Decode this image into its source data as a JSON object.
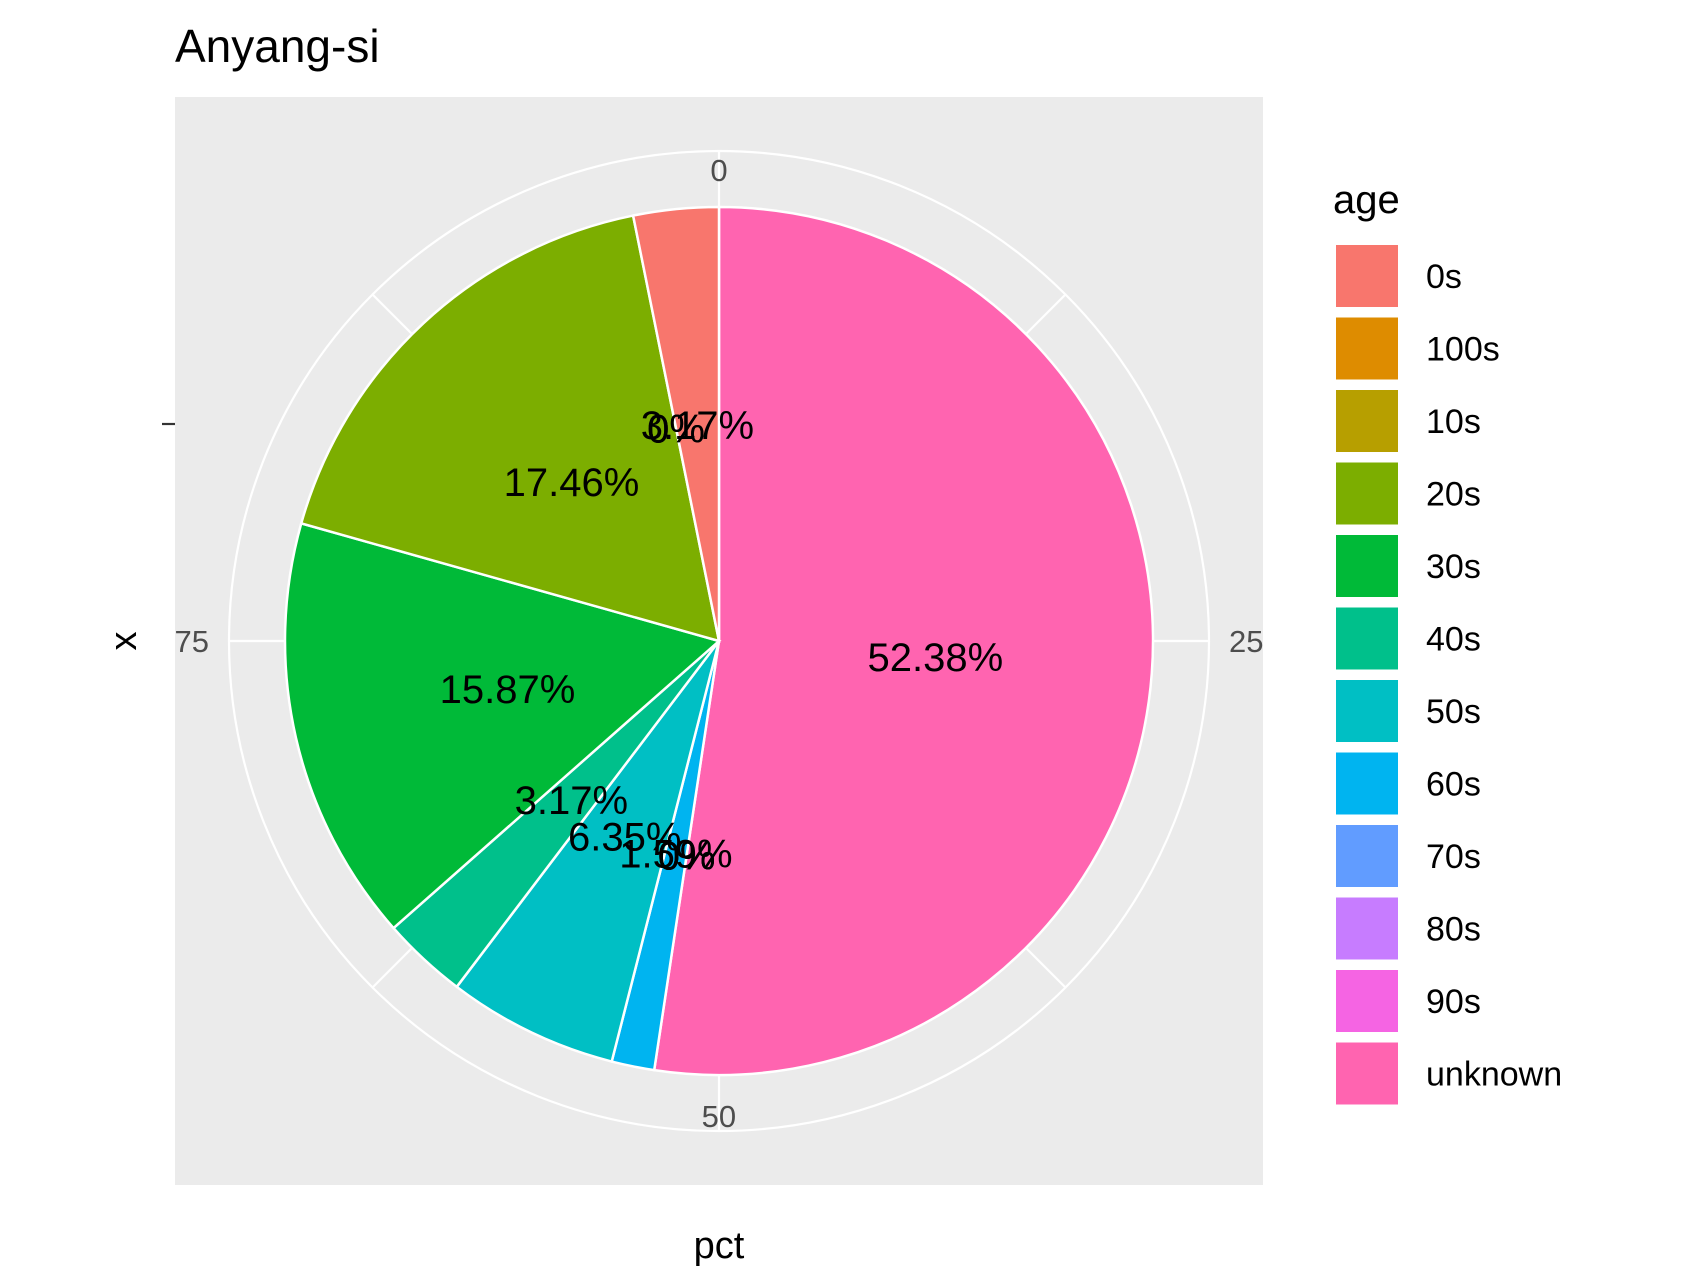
{
  "chart_data": {
    "type": "pie",
    "title": "Anyang-si",
    "xlabel": "pct",
    "ylabel": "x",
    "theta_ticks": [
      "0",
      "25",
      "50",
      "75"
    ],
    "legend": {
      "title": "age",
      "placement": "right",
      "entries": [
        {
          "label": "0s",
          "color": "#F8766D"
        },
        {
          "label": "100s",
          "color": "#DE8C00"
        },
        {
          "label": "10s",
          "color": "#B79F00"
        },
        {
          "label": "20s",
          "color": "#7CAE00"
        },
        {
          "label": "30s",
          "color": "#00BA38"
        },
        {
          "label": "40s",
          "color": "#00C08B"
        },
        {
          "label": "50s",
          "color": "#00BFC4"
        },
        {
          "label": "60s",
          "color": "#00B4F0"
        },
        {
          "label": "70s",
          "color": "#619CFF"
        },
        {
          "label": "80s",
          "color": "#C77CFF"
        },
        {
          "label": "90s",
          "color": "#F564E3"
        },
        {
          "label": "unknown",
          "color": "#FF64B0"
        }
      ]
    },
    "slices": [
      {
        "category": "unknown",
        "value": 52.38,
        "label": "52.38%"
      },
      {
        "category": "90s",
        "value": 0,
        "label": "0%"
      },
      {
        "category": "80s",
        "value": 0,
        "label": "0%"
      },
      {
        "category": "70s",
        "value": 0,
        "label": "0%"
      },
      {
        "category": "60s",
        "value": 1.59,
        "label": "1.59%"
      },
      {
        "category": "50s",
        "value": 6.35,
        "label": "6.35%"
      },
      {
        "category": "40s",
        "value": 3.17,
        "label": "3.17%"
      },
      {
        "category": "30s",
        "value": 15.87,
        "label": "15.87%"
      },
      {
        "category": "20s",
        "value": 17.46,
        "label": "17.46%"
      },
      {
        "category": "10s",
        "value": 0,
        "label": "0%"
      },
      {
        "category": "100s",
        "value": 0,
        "label": "0%"
      },
      {
        "category": "0s",
        "value": 3.17,
        "label": "3.17%"
      }
    ],
    "panel_background": "#EBEBEB",
    "grid": true
  }
}
